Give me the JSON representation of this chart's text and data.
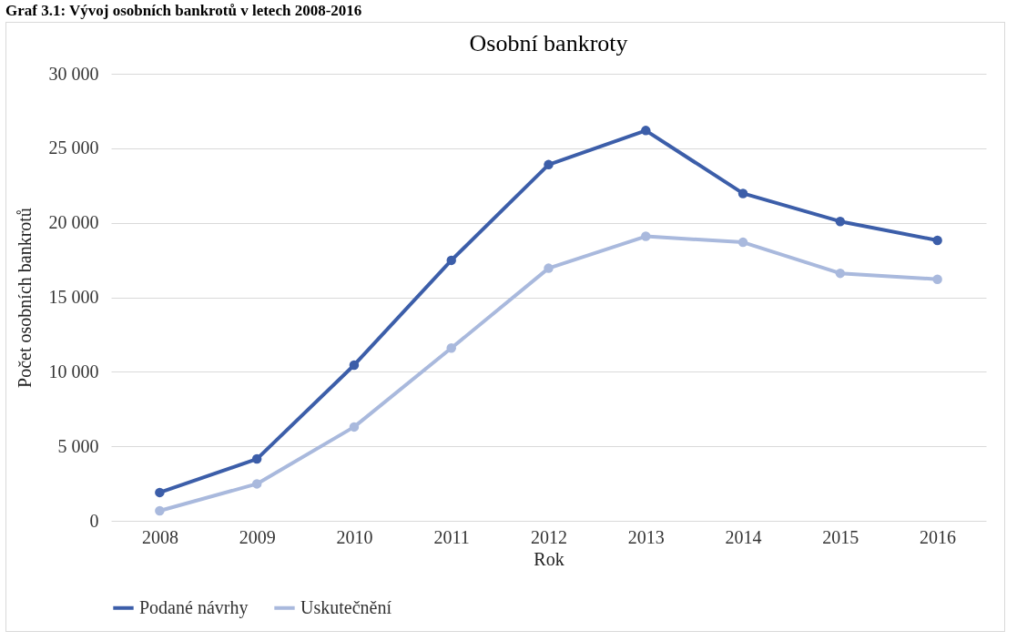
{
  "chart_data": {
    "type": "line",
    "title": "Osobní bankroty",
    "xlabel": "Rok",
    "ylabel": "Počet osobních bankrotů",
    "annotations": [
      "Graf 3.1: Vývoj osobních bankrotů v letech 2008-2016"
    ],
    "categories": [
      "2008",
      "2009",
      "2010",
      "2011",
      "2012",
      "2013",
      "2014",
      "2015",
      "2016"
    ],
    "series": [
      {
        "name": "Podané návrhy",
        "color": "#3c5ea9",
        "values": [
          1900,
          4150,
          10450,
          17480,
          23900,
          26190,
          21970,
          20090,
          18820
        ]
      },
      {
        "name": "Uskutečnění",
        "color": "#a9b9dd",
        "values": [
          670,
          2480,
          6300,
          11590,
          16950,
          19090,
          18690,
          16610,
          16210
        ]
      }
    ],
    "ylim": [
      0,
      30000
    ],
    "yticks": [
      {
        "value": 0,
        "label": "0"
      },
      {
        "value": 5000,
        "label": "5 000"
      },
      {
        "value": 10000,
        "label": "10 000"
      },
      {
        "value": 15000,
        "label": "15 000"
      },
      {
        "value": 20000,
        "label": "20 000"
      },
      {
        "value": 25000,
        "label": "25 000"
      },
      {
        "value": 30000,
        "label": "30 000"
      }
    ],
    "grid": "y",
    "legend": "bottom",
    "marker": "circle",
    "line_style": "solid"
  }
}
